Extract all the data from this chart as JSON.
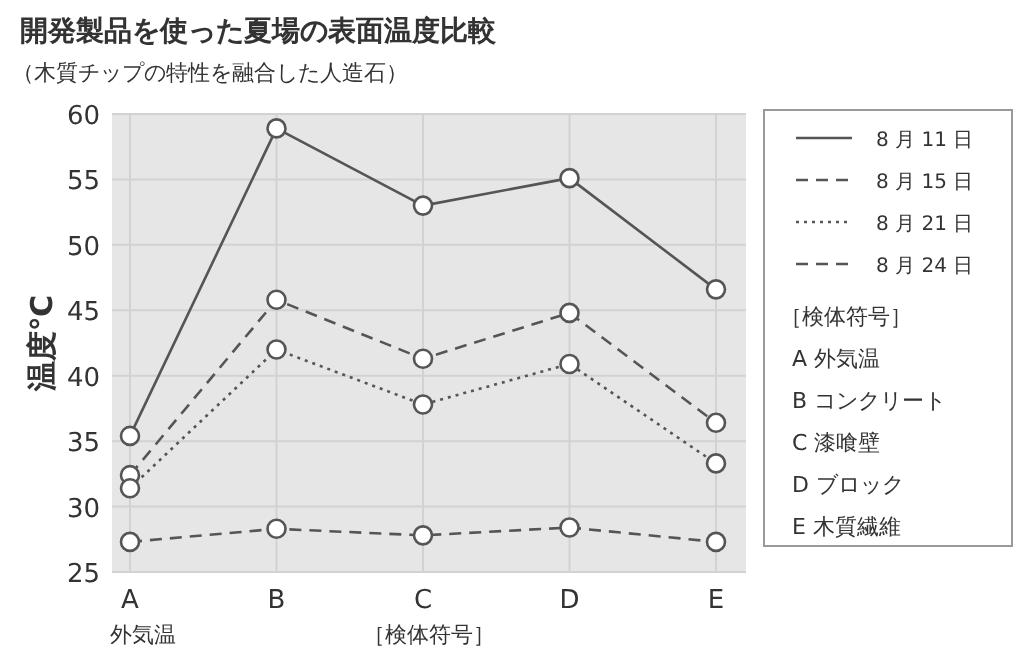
{
  "chart_data": {
    "type": "line",
    "title": "開発製品を使った夏場の表面温度比較",
    "subtitle": "（木質チップの特性を融合した人造石）",
    "ylabel": "温度℃",
    "xlabel": "［検体符号］",
    "categories": [
      "A",
      "B",
      "C",
      "D",
      "E"
    ],
    "ylim": [
      25,
      60
    ],
    "yticks": [
      25,
      30,
      35,
      40,
      45,
      50,
      55,
      60
    ],
    "grid": true,
    "legend": "right",
    "marker": "circle",
    "series": [
      {
        "name": "8 月 11 日",
        "color": "#555555",
        "line_style": "solid",
        "values": [
          35.4,
          58.9,
          53.0,
          55.1,
          46.6
        ]
      },
      {
        "name": "8 月 15 日",
        "color": "#555555",
        "line_style": "dashed",
        "values": [
          32.4,
          45.8,
          41.3,
          44.8,
          36.4
        ]
      },
      {
        "name": "8 月 21 日",
        "color": "#555555",
        "line_style": "dotted",
        "values": [
          31.4,
          42.0,
          37.8,
          40.9,
          33.3
        ]
      },
      {
        "name": "8 月 24 日",
        "color": "#555555",
        "line_style": "dashed",
        "values": [
          27.3,
          28.3,
          27.8,
          28.4,
          27.3
        ]
      }
    ],
    "annotations": [
      "外気温",
      "［検体符号］",
      "A 外気温",
      "B コンクリート",
      "C 漆喰壁",
      "D ブロック",
      "E 木質繊維"
    ]
  }
}
